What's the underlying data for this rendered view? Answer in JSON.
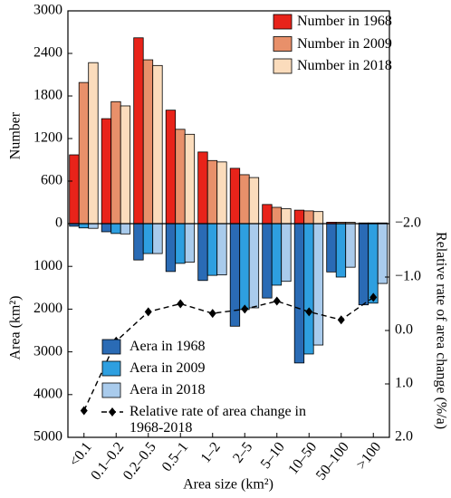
{
  "chart_data": [
    {
      "type": "bar",
      "ylabel": "Number",
      "ylim": [
        0,
        3000
      ],
      "yticks": [
        0,
        600,
        1200,
        1800,
        2400,
        3000
      ],
      "legend": "upper right",
      "series": [
        {
          "name": "Number in 1968",
          "color": "#e8231a",
          "values": [
            970,
            1480,
            2620,
            1600,
            1010,
            780,
            270,
            190,
            20,
            10
          ]
        },
        {
          "name": "Number in 2009",
          "color": "#e8906a",
          "values": [
            1990,
            1720,
            2310,
            1330,
            890,
            690,
            230,
            180,
            20,
            10
          ]
        },
        {
          "name": "Number in 2018",
          "color": "#fbdcbc",
          "values": [
            2270,
            1660,
            2230,
            1260,
            870,
            650,
            210,
            170,
            20,
            10
          ]
        }
      ]
    },
    {
      "type": "bar",
      "ylabel": "Area (km²)",
      "xlabel": "Area size (km²)",
      "inverted": true,
      "categories": [
        "<0.1",
        "0.1–0.2",
        "0.2–0.5",
        "0.5–1",
        "1–2",
        "2–5",
        "5–10",
        "10–50",
        "50–100",
        ">100"
      ],
      "ylim": [
        0,
        5000
      ],
      "yticks": [
        1000,
        2000,
        3000,
        4000,
        5000
      ],
      "y2label": "Relative rate of area change (%/a)",
      "y2lim": [
        -2,
        2
      ],
      "y2ticks": [
        {
          "value": -2,
          "label": "−2.0"
        },
        {
          "value": -1,
          "label": "−1.0"
        },
        {
          "value": 0,
          "label": "0.0"
        },
        {
          "value": 1,
          "label": "1.0"
        },
        {
          "value": 2,
          "label": "2.0"
        }
      ],
      "legend": "lower left",
      "series": [
        {
          "name": "Aera in 1968",
          "color": "#2a6bb5",
          "values": [
            60,
            190,
            850,
            1120,
            1330,
            2400,
            1740,
            3260,
            1130,
            1900
          ]
        },
        {
          "name": "Aera in 2009",
          "color": "#2e9fe0",
          "values": [
            100,
            230,
            700,
            930,
            1210,
            2010,
            1440,
            3050,
            1250,
            1860
          ]
        },
        {
          "name": "Aera in 2018",
          "color": "#a9cbec",
          "values": [
            110,
            240,
            700,
            900,
            1200,
            1970,
            1350,
            2840,
            1020,
            1400
          ]
        },
        {
          "name": "Relative rate of area change in 1968-2018",
          "type": "line",
          "axis": "y2",
          "color": "#000000",
          "values": [
            1.5,
            0.2,
            -0.35,
            -0.5,
            -0.32,
            -0.4,
            -0.55,
            -0.35,
            -0.2,
            -0.62
          ]
        }
      ]
    }
  ]
}
